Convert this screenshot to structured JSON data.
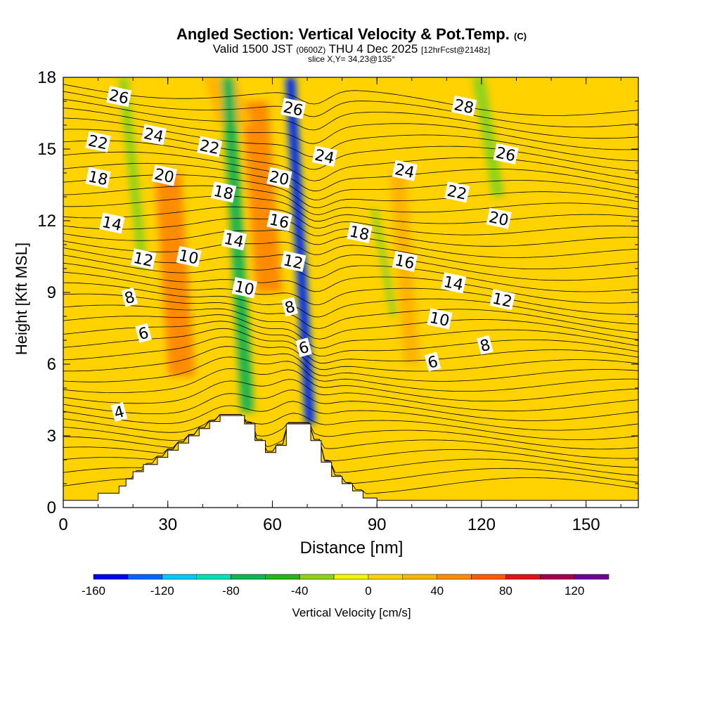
{
  "chart_data": {
    "type": "heatmap",
    "title": "Angled Section: Vertical Velocity & Pot.Temp.",
    "copyright_mark": "(C)",
    "subtitle": {
      "valid_label": "Valid 1500 JST",
      "utc": "(0600Z)",
      "date": "THU 4 Dec 2025",
      "forecast": "[12hrFcst@2148z]"
    },
    "slice_label": "slice X,Y= 34,23@135°",
    "xlabel": "Distance [nm]",
    "ylabel": "Height [Kft MSL]",
    "xlim": [
      0,
      165
    ],
    "ylim": [
      0,
      18
    ],
    "xticks": [
      0,
      30,
      60,
      90,
      120,
      150
    ],
    "yticks": [
      0,
      3,
      6,
      9,
      12,
      15,
      18
    ],
    "colorbar": {
      "label": "Vertical Velocity [cm/s]",
      "range": [
        -160,
        140
      ],
      "step": 20,
      "tick_labels": [
        -160,
        -120,
        -80,
        -40,
        0,
        40,
        80,
        120
      ],
      "colors": [
        "#0000ee",
        "#0064ff",
        "#00c8ff",
        "#00e0b4",
        "#14b450",
        "#28b41e",
        "#8cd21e",
        "#f5f500",
        "#ffd200",
        "#ffb400",
        "#ff8c00",
        "#ff5a00",
        "#e01414",
        "#a0004b",
        "#6e0096"
      ]
    },
    "terrain_profile": [
      [
        0,
        0.3
      ],
      [
        10,
        0.3
      ],
      [
        10,
        0.6
      ],
      [
        16,
        0.6
      ],
      [
        16,
        0.9
      ],
      [
        18,
        0.9
      ],
      [
        18,
        1.2
      ],
      [
        20,
        1.2
      ],
      [
        20,
        1.5
      ],
      [
        23,
        1.5
      ],
      [
        23,
        1.8
      ],
      [
        27,
        1.8
      ],
      [
        27,
        2.1
      ],
      [
        30,
        2.1
      ],
      [
        30,
        2.4
      ],
      [
        33,
        2.4
      ],
      [
        33,
        2.7
      ],
      [
        36,
        2.7
      ],
      [
        36,
        3.0
      ],
      [
        39,
        3.0
      ],
      [
        39,
        3.3
      ],
      [
        42,
        3.3
      ],
      [
        42,
        3.6
      ],
      [
        45,
        3.6
      ],
      [
        45,
        3.85
      ],
      [
        52,
        3.85
      ],
      [
        52,
        3.5
      ],
      [
        55,
        3.5
      ],
      [
        55,
        2.8
      ],
      [
        58,
        2.8
      ],
      [
        58,
        2.3
      ],
      [
        61,
        2.3
      ],
      [
        61,
        2.6
      ],
      [
        64,
        2.6
      ],
      [
        64,
        3.5
      ],
      [
        71,
        3.5
      ],
      [
        71,
        2.8
      ],
      [
        74,
        2.8
      ],
      [
        74,
        1.9
      ],
      [
        77,
        1.9
      ],
      [
        77,
        1.3
      ],
      [
        80,
        1.3
      ],
      [
        80,
        1.0
      ],
      [
        83,
        1.0
      ],
      [
        83,
        0.7
      ],
      [
        86,
        0.7
      ],
      [
        86,
        0.4
      ],
      [
        90,
        0.4
      ],
      [
        90,
        0.3
      ],
      [
        165,
        0.3
      ]
    ],
    "velocity_features": [
      {
        "kind": "updraft",
        "x": 32,
        "y0": 5.5,
        "y1": 14,
        "width": 8,
        "value": 40
      },
      {
        "kind": "updraft",
        "x": 57,
        "y0": 9,
        "y1": 17,
        "width": 8,
        "value": 40
      },
      {
        "kind": "updraft",
        "x": 47,
        "y0": 16,
        "y1": 18,
        "width": 10,
        "value": 30
      },
      {
        "kind": "updraft",
        "x": 98,
        "y0": 6,
        "y1": 14,
        "width": 5,
        "value": 30
      },
      {
        "kind": "downdraft",
        "x": 50,
        "y0": 4,
        "y1": 18,
        "width": 4,
        "value": -80
      },
      {
        "kind": "downdraft",
        "x": 68,
        "y0": 3.5,
        "y1": 18,
        "width": 3,
        "value": -150
      },
      {
        "kind": "downdraft",
        "x": 20,
        "y0": 10,
        "y1": 18,
        "width": 3,
        "value": -40
      },
      {
        "kind": "downdraft",
        "x": 122,
        "y0": 13,
        "y1": 18,
        "width": 4,
        "value": -40
      },
      {
        "kind": "downdraft",
        "x": 92,
        "y0": 8,
        "y1": 12.5,
        "width": 2,
        "value": -40
      }
    ],
    "isentrope_labels": [
      {
        "text": "26",
        "x": 16,
        "y": 17.2
      },
      {
        "text": "24",
        "x": 26,
        "y": 15.6
      },
      {
        "text": "22",
        "x": 10,
        "y": 15.3
      },
      {
        "text": "22",
        "x": 42,
        "y": 15.1
      },
      {
        "text": "20",
        "x": 29,
        "y": 13.9
      },
      {
        "text": "18",
        "x": 10,
        "y": 13.8
      },
      {
        "text": "18",
        "x": 46,
        "y": 13.2
      },
      {
        "text": "20",
        "x": 62,
        "y": 13.8
      },
      {
        "text": "26",
        "x": 66,
        "y": 16.7
      },
      {
        "text": "24",
        "x": 75,
        "y": 14.7
      },
      {
        "text": "24",
        "x": 98,
        "y": 14.1
      },
      {
        "text": "28",
        "x": 115,
        "y": 16.8
      },
      {
        "text": "26",
        "x": 127,
        "y": 14.8
      },
      {
        "text": "22",
        "x": 113,
        "y": 13.2
      },
      {
        "text": "20",
        "x": 125,
        "y": 12.1
      },
      {
        "text": "14",
        "x": 14,
        "y": 11.9
      },
      {
        "text": "12",
        "x": 23,
        "y": 10.4
      },
      {
        "text": "10",
        "x": 36,
        "y": 10.5
      },
      {
        "text": "14",
        "x": 49,
        "y": 11.2
      },
      {
        "text": "16",
        "x": 62,
        "y": 12.0
      },
      {
        "text": "18",
        "x": 85,
        "y": 11.5
      },
      {
        "text": "12",
        "x": 66,
        "y": 10.3
      },
      {
        "text": "16",
        "x": 98,
        "y": 10.3
      },
      {
        "text": "14",
        "x": 112,
        "y": 9.4
      },
      {
        "text": "12",
        "x": 126,
        "y": 8.7
      },
      {
        "text": "10",
        "x": 52,
        "y": 9.2
      },
      {
        "text": "8",
        "x": 19,
        "y": 8.8
      },
      {
        "text": "8",
        "x": 65,
        "y": 8.4
      },
      {
        "text": "10",
        "x": 108,
        "y": 7.9
      },
      {
        "text": "6",
        "x": 23,
        "y": 7.3
      },
      {
        "text": "6",
        "x": 69,
        "y": 6.7
      },
      {
        "text": "8",
        "x": 121,
        "y": 6.8
      },
      {
        "text": "6",
        "x": 106,
        "y": 6.1
      },
      {
        "text": "4",
        "x": 16,
        "y": 4.0
      }
    ]
  }
}
